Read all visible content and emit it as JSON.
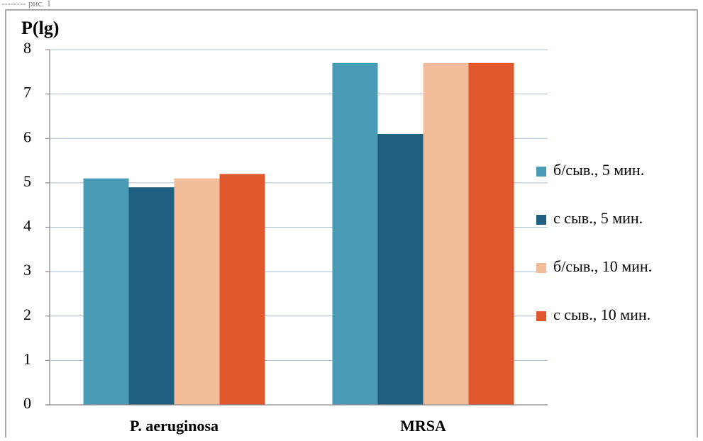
{
  "chart_data": {
    "type": "bar",
    "title": "",
    "ylabel": "P(lg)",
    "xlabel": "",
    "categories": [
      "P. aeruginosa",
      "MRSA"
    ],
    "series": [
      {
        "name": "б/сыв., 5 мин.",
        "values": [
          5.1,
          7.7
        ],
        "color": "#4a9cb6"
      },
      {
        "name": "с сыв., 5 мин.",
        "values": [
          4.9,
          6.1
        ],
        "color": "#1f5f7f"
      },
      {
        "name": "б/сыв., 10 мин.",
        "values": [
          5.1,
          7.7
        ],
        "color": "#f2bd9a"
      },
      {
        "name": "с сыв., 10 мин.",
        "values": [
          5.2,
          7.7
        ],
        "color": "#e2582e"
      }
    ],
    "ylim": [
      0,
      8
    ],
    "yticks": [
      0,
      1,
      2,
      3,
      4,
      5,
      6,
      7,
      8
    ],
    "grid": true,
    "legend": "right",
    "caption_fragment": "-------- рис. 1"
  }
}
